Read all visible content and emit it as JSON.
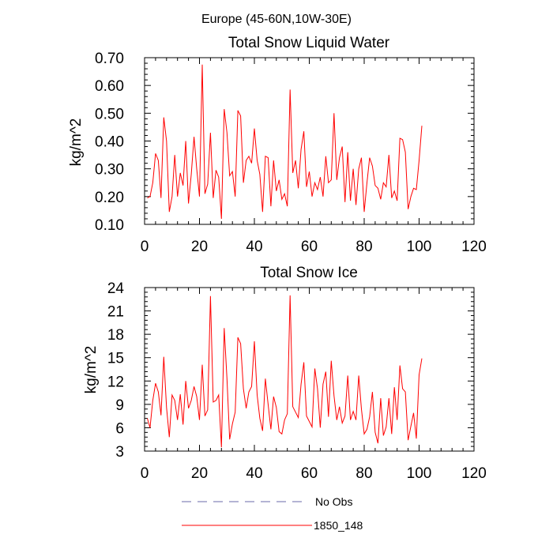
{
  "suptitle": "Europe (45-60N,10W-30E)",
  "chart_data": [
    {
      "type": "line",
      "title": "Total Snow Liquid Water",
      "xlabel": "",
      "ylabel": "kg/m^2",
      "xlim": [
        0,
        120
      ],
      "ylim": [
        0.1,
        0.7
      ],
      "xticks": [
        0,
        20,
        40,
        60,
        80,
        100,
        120
      ],
      "xtick_labels": [
        "0",
        "20",
        "40",
        "60",
        "80",
        "100",
        "120"
      ],
      "yticks": [
        0.1,
        0.2,
        0.3,
        0.4,
        0.5,
        0.6,
        0.7
      ],
      "ytick_labels": [
        "0.10",
        "0.20",
        "0.30",
        "0.40",
        "0.50",
        "0.60",
        "0.70"
      ],
      "grid": false,
      "series": [
        {
          "name": "1850_148",
          "color": "#ff0000",
          "x": [
            1,
            2,
            3,
            4,
            5,
            6,
            7,
            8,
            9,
            10,
            11,
            12,
            13,
            14,
            15,
            16,
            17,
            18,
            19,
            20,
            21,
            22,
            23,
            24,
            25,
            26,
            27,
            28,
            29,
            30,
            31,
            32,
            33,
            34,
            35,
            36,
            37,
            38,
            39,
            40,
            41,
            42,
            43,
            44,
            45,
            46,
            47,
            48,
            49,
            50,
            51,
            52,
            53,
            54,
            55,
            56,
            57,
            58,
            59,
            60,
            61,
            62,
            63,
            64,
            65,
            66,
            67,
            68,
            69,
            70,
            71,
            72,
            73,
            74,
            75,
            76,
            77,
            78,
            79,
            80,
            81,
            82,
            83,
            84,
            85,
            86,
            87,
            88,
            89,
            90,
            91,
            92,
            93,
            94,
            95,
            96,
            97,
            98,
            99,
            100,
            101
          ],
          "y": [
            0.195,
            0.2,
            0.25,
            0.355,
            0.33,
            0.195,
            0.485,
            0.4,
            0.145,
            0.2,
            0.35,
            0.2,
            0.285,
            0.24,
            0.4,
            0.175,
            0.28,
            0.415,
            0.3,
            0.2,
            0.675,
            0.21,
            0.245,
            0.43,
            0.195,
            0.295,
            0.27,
            0.12,
            0.515,
            0.43,
            0.275,
            0.29,
            0.2,
            0.51,
            0.49,
            0.25,
            0.33,
            0.345,
            0.32,
            0.445,
            0.33,
            0.28,
            0.145,
            0.345,
            0.34,
            0.165,
            0.33,
            0.22,
            0.26,
            0.19,
            0.21,
            0.165,
            0.585,
            0.285,
            0.33,
            0.23,
            0.37,
            0.435,
            0.235,
            0.29,
            0.2,
            0.25,
            0.225,
            0.27,
            0.2,
            0.345,
            0.25,
            0.26,
            0.5,
            0.26,
            0.34,
            0.38,
            0.18,
            0.36,
            0.185,
            0.3,
            0.17,
            0.3,
            0.34,
            0.145,
            0.25,
            0.34,
            0.31,
            0.24,
            0.23,
            0.19,
            0.25,
            0.235,
            0.35,
            0.195,
            0.22,
            0.185,
            0.41,
            0.405,
            0.36,
            0.155,
            0.2,
            0.23,
            0.225,
            0.33,
            0.455
          ]
        }
      ]
    },
    {
      "type": "line",
      "title": "Total Snow Ice",
      "xlabel": "",
      "ylabel": "kg/m^2",
      "xlim": [
        0,
        120
      ],
      "ylim": [
        3,
        24
      ],
      "xticks": [
        0,
        20,
        40,
        60,
        80,
        100,
        120
      ],
      "xtick_labels": [
        "0",
        "20",
        "40",
        "60",
        "80",
        "100",
        "120"
      ],
      "yticks": [
        3,
        6,
        9,
        12,
        15,
        18,
        21,
        24
      ],
      "ytick_labels": [
        "3",
        "6",
        "9",
        "12",
        "15",
        "18",
        "21",
        "24"
      ],
      "grid": false,
      "series": [
        {
          "name": "1850_148",
          "color": "#ff0000",
          "x": [
            1,
            2,
            3,
            4,
            5,
            6,
            7,
            8,
            9,
            10,
            11,
            12,
            13,
            14,
            15,
            16,
            17,
            18,
            19,
            20,
            21,
            22,
            23,
            24,
            25,
            26,
            27,
            28,
            29,
            30,
            31,
            32,
            33,
            34,
            35,
            36,
            37,
            38,
            39,
            40,
            41,
            42,
            43,
            44,
            45,
            46,
            47,
            48,
            49,
            50,
            51,
            52,
            53,
            54,
            55,
            56,
            57,
            58,
            59,
            60,
            61,
            62,
            63,
            64,
            65,
            66,
            67,
            68,
            69,
            70,
            71,
            72,
            73,
            74,
            75,
            76,
            77,
            78,
            79,
            80,
            81,
            82,
            83,
            84,
            85,
            86,
            87,
            88,
            89,
            90,
            91,
            92,
            93,
            94,
            95,
            96,
            97,
            98,
            99,
            100,
            101
          ],
          "y": [
            7.2,
            6.0,
            9.5,
            11.7,
            10.6,
            7.6,
            15.1,
            8.6,
            4.8,
            10.2,
            9.5,
            7.0,
            10.3,
            6.4,
            12.0,
            8.5,
            9.5,
            11.3,
            10.0,
            7.0,
            14.1,
            7.5,
            8.3,
            22.9,
            9.3,
            9.5,
            10.2,
            3.5,
            18.8,
            12.3,
            4.5,
            6.5,
            8.0,
            17.6,
            16.8,
            11.0,
            8.5,
            10.6,
            11.3,
            17.1,
            10.2,
            7.2,
            5.6,
            12.3,
            9.0,
            5.8,
            10.0,
            8.6,
            5.5,
            5.2,
            7.0,
            7.8,
            23.0,
            8.7,
            8.0,
            7.3,
            11.6,
            14.4,
            7.5,
            6.8,
            6.1,
            13.6,
            11.0,
            6.0,
            11.6,
            13.2,
            7.4,
            14.6,
            10.1,
            7.0,
            8.7,
            6.6,
            7.5,
            12.7,
            7.0,
            8.1,
            7.0,
            12.7,
            8.4,
            5.2,
            5.8,
            7.4,
            10.6,
            5.4,
            4.0,
            9.8,
            5.0,
            6.1,
            9.8,
            5.2,
            11.2,
            7.0,
            14.0,
            11.0,
            10.6,
            4.4,
            6.2,
            7.9,
            4.6,
            12.8,
            14.9
          ]
        }
      ]
    }
  ],
  "legend": {
    "placement": "bottom-center",
    "entries": [
      {
        "label": "No Obs",
        "color": "#6a6aa8",
        "dash": "dashed"
      },
      {
        "label": "1850_148",
        "color": "#ff0000",
        "dash": "solid"
      }
    ]
  }
}
